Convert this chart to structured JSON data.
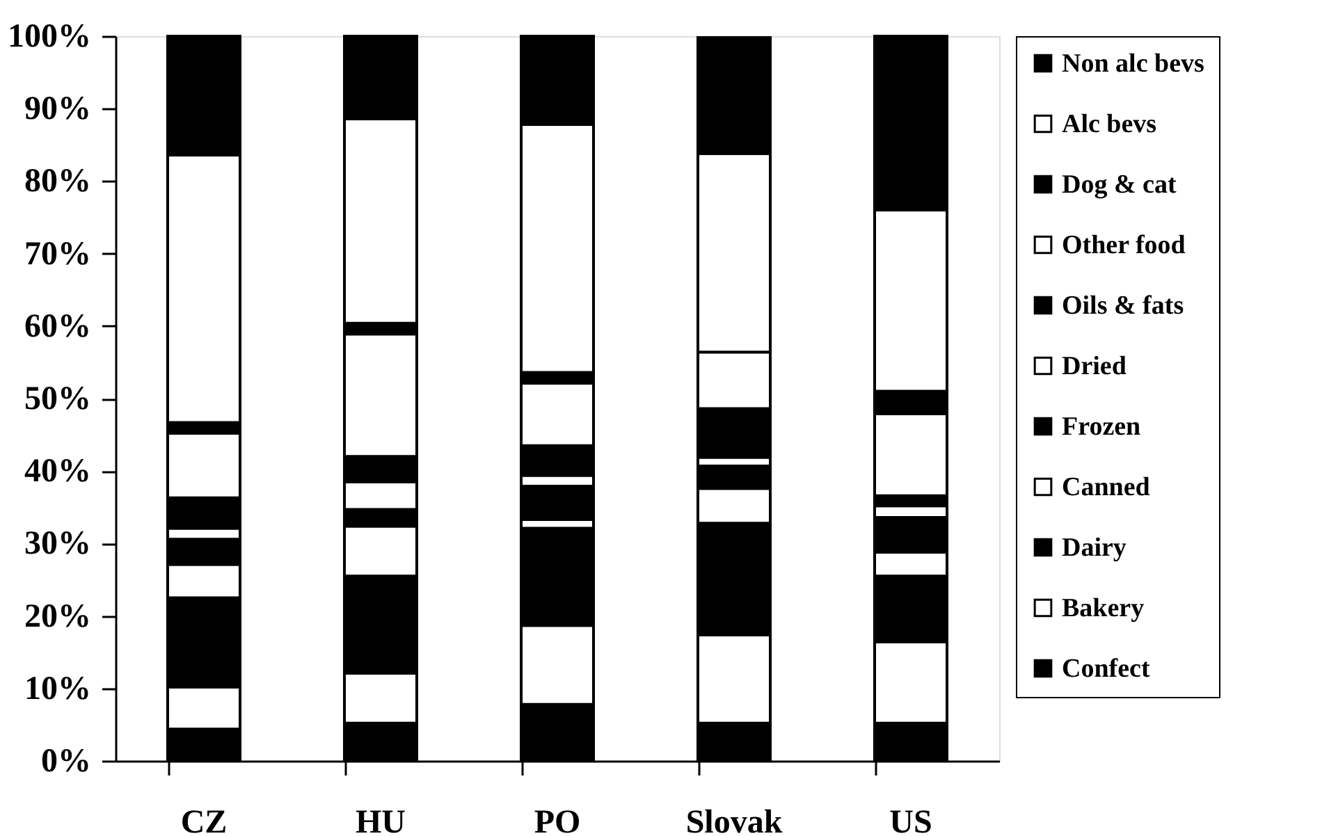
{
  "chart_data": {
    "type": "bar",
    "stacked": true,
    "categories": [
      "CZ",
      "HU",
      "PO",
      "Slovak",
      "US"
    ],
    "series": [
      {
        "name": "Confect",
        "color": "#000000",
        "values": [
          4.4,
          5.2,
          7.8,
          5.2,
          5.2
        ]
      },
      {
        "name": "Bakery",
        "color": "#ffffff",
        "values": [
          5.8,
          6.9,
          10.9,
          12.2,
          11.2
        ]
      },
      {
        "name": "Dairy",
        "color": "#000000",
        "values": [
          12.3,
          13.4,
          13.4,
          15.4,
          9.1
        ]
      },
      {
        "name": "Canned",
        "color": "#ffffff",
        "values": [
          4.6,
          6.9,
          1.2,
          4.8,
          3.3
        ]
      },
      {
        "name": "Frozen",
        "color": "#000000",
        "values": [
          3.5,
          2.3,
          4.6,
          3.1,
          4.8
        ]
      },
      {
        "name": "Dried",
        "color": "#ffffff",
        "values": [
          1.5,
          3.8,
          1.5,
          1.2,
          1.6
        ]
      },
      {
        "name": "Oils & fats",
        "color": "#000000",
        "values": [
          4.2,
          3.5,
          4.1,
          6.7,
          1.4
        ]
      },
      {
        "name": "Other food",
        "color": "#ffffff",
        "values": [
          8.9,
          16.9,
          8.6,
          7.8,
          11.3
        ]
      },
      {
        "name": "Dog & cat",
        "color": "#000000",
        "values": [
          1.5,
          1.5,
          1.5,
          null,
          3.1
        ]
      },
      {
        "name": "Alc bevs",
        "color": "#ffffff",
        "values": [
          36.9,
          28.2,
          34.2,
          27.4,
          25.0
        ]
      },
      {
        "name": "Non alc bevs",
        "color": "#000000",
        "values": [
          16.4,
          11.4,
          12.2,
          16.0,
          24.0
        ]
      }
    ],
    "ylim": [
      0,
      100
    ],
    "yticks": [
      {
        "value": 0,
        "label": "0%"
      },
      {
        "value": 10,
        "label": "10%"
      },
      {
        "value": 20,
        "label": "20%"
      },
      {
        "value": 30,
        "label": "30%"
      },
      {
        "value": 40,
        "label": "40%"
      },
      {
        "value": 50,
        "label": "50%"
      },
      {
        "value": 60,
        "label": "60%"
      },
      {
        "value": 70,
        "label": "70%"
      },
      {
        "value": 80,
        "label": "80%"
      },
      {
        "value": 90,
        "label": "90%"
      },
      {
        "value": 100,
        "label": "100%"
      }
    ],
    "grid": false,
    "legend": "right"
  }
}
